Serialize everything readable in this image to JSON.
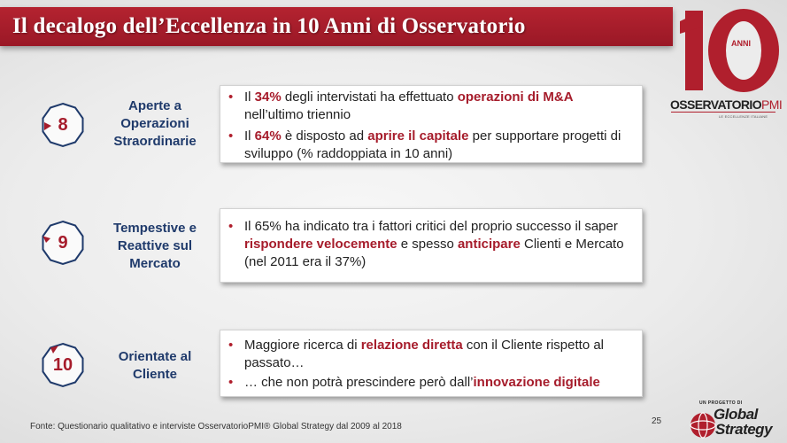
{
  "title": "Il decalogo dell’Eccellenza in 10 Anni di Osservatorio",
  "logo_10anni": {
    "number": "10",
    "label": "ANNI"
  },
  "logo_osservatorio": {
    "name_main": "OSSERVATORIO",
    "name_suffix": "PMI",
    "tagline": "LE ECCELLENZE ITALIANE"
  },
  "colors": {
    "accent": "#a61c2b",
    "title_bg": "#b42330",
    "category_text": "#1f3a6b"
  },
  "sections": [
    {
      "number": "8",
      "category": "Aperte a Operazioni Straordinarie",
      "bullets": [
        [
          {
            "t": "Il ",
            "hl": false
          },
          {
            "t": "34%",
            "hl": true
          },
          {
            "t": " degli intervistati ha effettuato ",
            "hl": false
          },
          {
            "t": "operazioni di M&A",
            "hl": true
          },
          {
            "t": " nell’ultimo triennio",
            "hl": false
          }
        ],
        [
          {
            "t": "Il ",
            "hl": false
          },
          {
            "t": "64%",
            "hl": true
          },
          {
            "t": " è disposto ad ",
            "hl": false
          },
          {
            "t": "aprire il capitale",
            "hl": true
          },
          {
            "t": " per supportare progetti di sviluppo (% raddoppiata in 10 anni)",
            "hl": false
          }
        ]
      ]
    },
    {
      "number": "9",
      "category": "Tempestive e Reattive sul Mercato",
      "bullets": [
        [
          {
            "t": "Il 65% ha indicato tra i fattori critici del proprio successo il saper ",
            "hl": false
          },
          {
            "t": "rispondere velocemente",
            "hl": true
          },
          {
            "t": " e spesso ",
            "hl": false
          },
          {
            "t": "anticipare",
            "hl": true
          },
          {
            "t": " Clienti e Mercato (nel 2011 era il 37%)",
            "hl": false
          }
        ]
      ]
    },
    {
      "number": "10",
      "category": "Orientate al Cliente",
      "bullets": [
        [
          {
            "t": "Maggiore ricerca di ",
            "hl": false
          },
          {
            "t": "relazione diretta",
            "hl": true
          },
          {
            "t": " con il Cliente rispetto al passato…",
            "hl": false
          }
        ],
        [
          {
            "t": "… che non potrà prescindere però dall’",
            "hl": false
          },
          {
            "t": "innovazione digitale",
            "hl": true
          }
        ]
      ]
    }
  ],
  "footer": "Fonte: Questionario qualitativo e interviste OsservatorioPMI® Global Strategy dal 2009 al 2018",
  "page_number": "25",
  "global_strategy": {
    "pre_label": "UN PROGETTO DI",
    "line1": "Global",
    "line2": "Strategy"
  }
}
